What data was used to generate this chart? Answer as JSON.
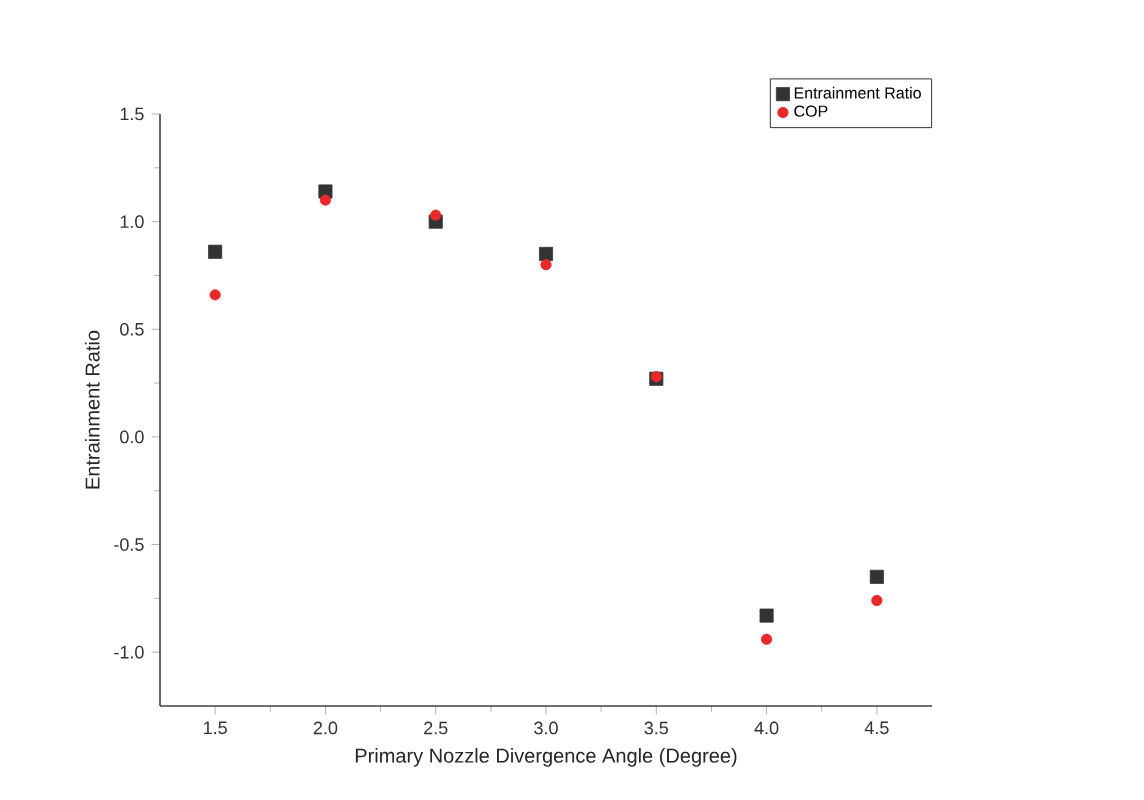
{
  "chart_data": {
    "type": "scatter",
    "xlabel": "Primary Nozzle Divergence Angle (Degree)",
    "ylabel": "Entrainment Ratio",
    "x": [
      1.5,
      2.0,
      2.5,
      3.0,
      3.5,
      4.0,
      4.5
    ],
    "series": [
      {
        "name": "Entrainment Ratio",
        "color": "#333333",
        "marker": "square",
        "values": [
          0.86,
          1.14,
          1.0,
          0.85,
          0.27,
          -0.83,
          -0.65
        ]
      },
      {
        "name": "COP",
        "color": "#e8282b",
        "marker": "circle",
        "values": [
          0.66,
          1.1,
          1.03,
          0.8,
          0.28,
          -0.94,
          -0.76
        ]
      }
    ],
    "xlim": [
      1.25,
      4.75
    ],
    "xticks": [
      1.5,
      {
        "value": 2,
        "label": "2.0"
      },
      2.5,
      {
        "value": 3,
        "label": "3.0"
      },
      3.5,
      {
        "value": 4,
        "label": "4.0"
      },
      4.5
    ],
    "ylim": [
      -1.25,
      1.5
    ],
    "yticks": [
      {
        "value": -1,
        "label": "-1.0"
      },
      -0.5,
      {
        "value": 0,
        "label": "0.0"
      },
      0.5,
      {
        "value": 1,
        "label": "1.0"
      },
      1.5
    ],
    "grid": false,
    "legend": "top right"
  }
}
